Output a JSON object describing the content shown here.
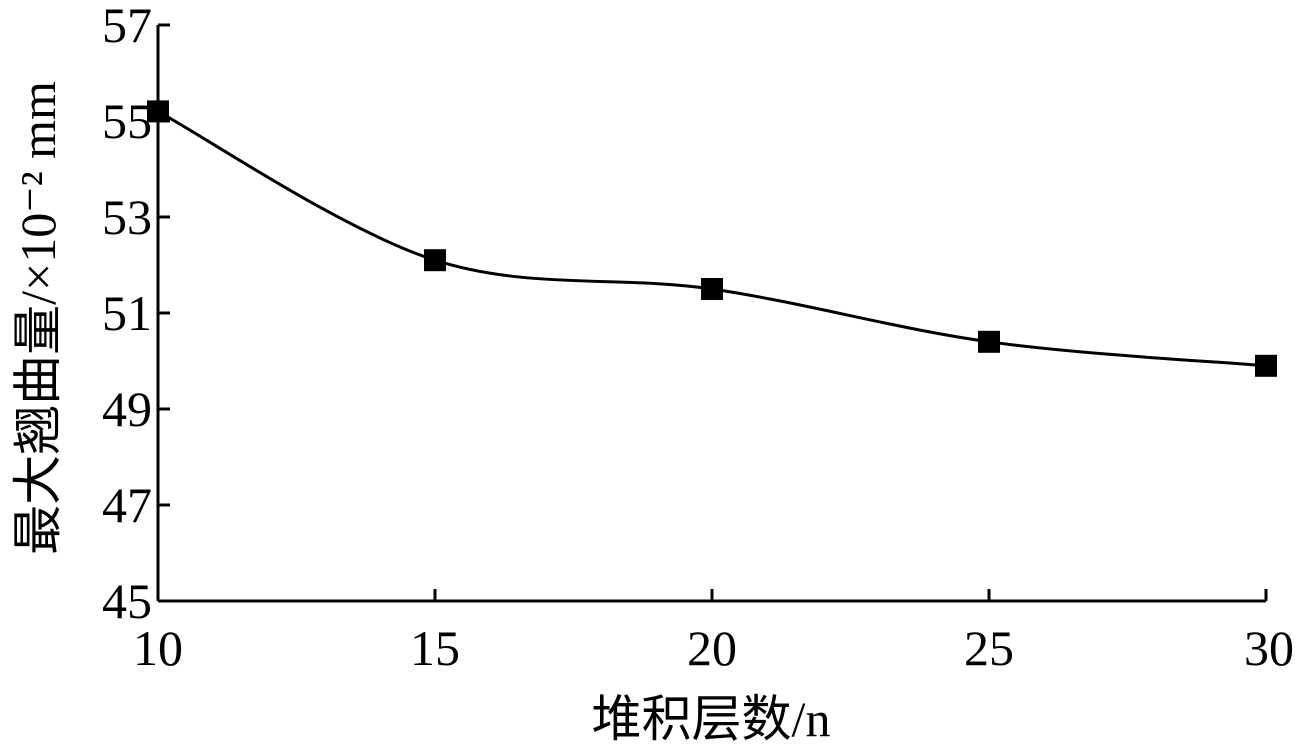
{
  "chart_data": {
    "type": "line",
    "xlabel": "堆积层数/n",
    "ylabel": "最大翘曲量/×10⁻² mm",
    "x": [
      10,
      15,
      20,
      25,
      30
    ],
    "series": [
      {
        "values": [
          55.2,
          52.1,
          51.5,
          50.4,
          49.9
        ],
        "marker": "square",
        "color": "#000000"
      }
    ],
    "xlim": [
      10,
      30
    ],
    "ylim": [
      45,
      57
    ],
    "xticks": [
      10,
      15,
      20,
      25,
      30
    ],
    "yticks": [
      45,
      47,
      49,
      51,
      53,
      55,
      57
    ],
    "grid": false,
    "smooth": true
  }
}
